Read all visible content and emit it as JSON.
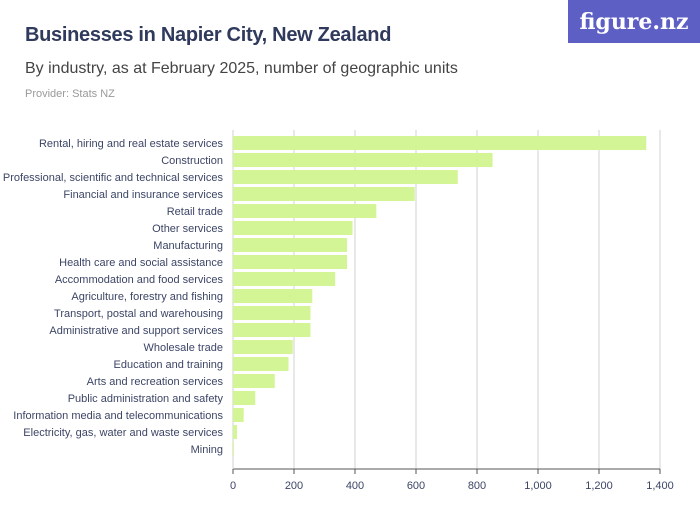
{
  "header": {
    "title": "Businesses in Napier City, New Zealand",
    "subtitle": "By industry, as at February 2025, number of geographic units",
    "provider": "Provider: Stats NZ",
    "logo": "figure.nz"
  },
  "colors": {
    "bar": "#d4f596",
    "grid": "#d0d0d0",
    "axis": "#555",
    "brand": "#5d5fc4"
  },
  "chart_data": {
    "type": "bar",
    "orientation": "horizontal",
    "categories": [
      "Rental, hiring and real estate services",
      "Construction",
      "Professional, scientific and technical services",
      "Financial and insurance services",
      "Retail trade",
      "Other services",
      "Manufacturing",
      "Health care and social assistance",
      "Accommodation and food services",
      "Agriculture, forestry and fishing",
      "Transport, postal and warehousing",
      "Administrative and support services",
      "Wholesale trade",
      "Education and training",
      "Arts and recreation services",
      "Public administration and safety",
      "Information media and telecommunications",
      "Electricity, gas, water and waste services",
      "Mining"
    ],
    "values": [
      1355,
      851,
      737,
      596,
      470,
      392,
      374,
      374,
      335,
      260,
      254,
      254,
      196,
      182,
      137,
      73,
      35,
      13,
      3
    ],
    "xlim": [
      0,
      1400
    ],
    "xticks": [
      0,
      200,
      400,
      600,
      800,
      1000,
      1200,
      1400
    ],
    "xtick_labels": [
      "0",
      "200",
      "400",
      "600",
      "800",
      "1,000",
      "1,200",
      "1,400"
    ],
    "grid": true
  }
}
